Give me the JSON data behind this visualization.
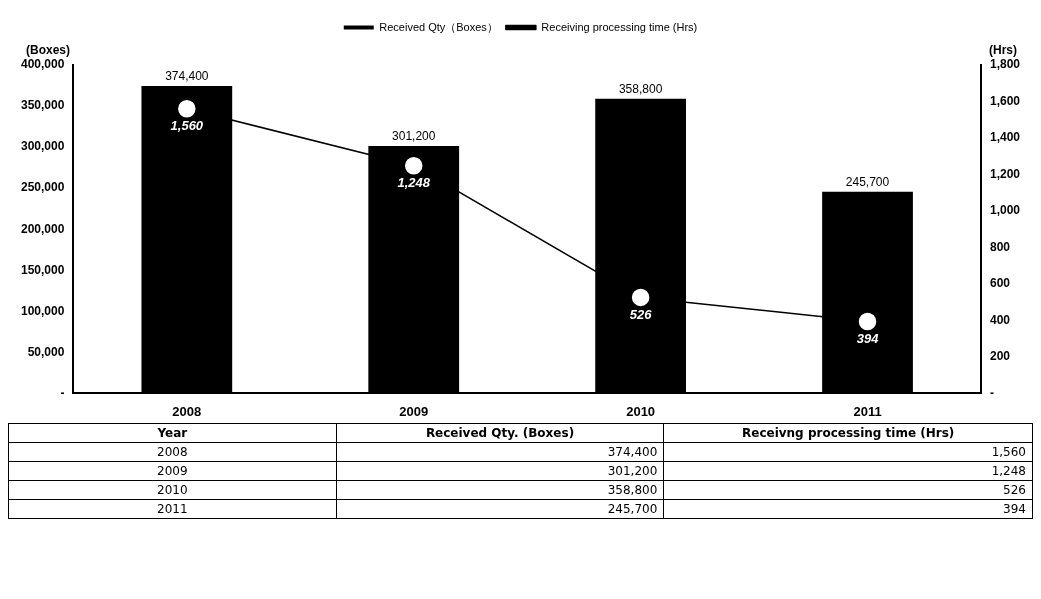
{
  "chart_data": {
    "type": "bar",
    "categories": [
      "2008",
      "2009",
      "2010",
      "2011"
    ],
    "series": [
      {
        "name": "Received Qty（Boxes）",
        "color": "#000000",
        "values": [
          374400,
          301200,
          358800,
          245700
        ],
        "value_labels": [
          "374,400",
          "301,200",
          "358,800",
          "245,700"
        ]
      },
      {
        "name": "Receiving processing time (Hrs)",
        "type": "line",
        "axis": "y2",
        "color": "#000000",
        "values": [
          1560,
          1248,
          526,
          394
        ],
        "value_labels": [
          "1,560",
          "1,248",
          "526",
          "394"
        ]
      }
    ],
    "ylabel": "(Boxes)",
    "y2label": "(Hrs)",
    "ylim": [
      0,
      400000
    ],
    "yticks": [
      {
        "value": 0,
        "label": "-"
      },
      {
        "value": 50000,
        "label": "50,000"
      },
      {
        "value": 100000,
        "label": "100,000"
      },
      {
        "value": 150000,
        "label": "150,000"
      },
      {
        "value": 200000,
        "label": "200,000"
      },
      {
        "value": 250000,
        "label": "250,000"
      },
      {
        "value": 300000,
        "label": "300,000"
      },
      {
        "value": 350000,
        "label": "350,000"
      },
      {
        "value": 400000,
        "label": "400,000"
      }
    ],
    "y2lim": [
      0,
      1800
    ],
    "y2ticks": [
      {
        "value": 0,
        "label": "-"
      },
      200,
      400,
      600,
      800,
      {
        "value": 1000,
        "label": "1,000"
      },
      {
        "value": 1200,
        "label": "1,200"
      },
      {
        "value": 1400,
        "label": "1,400"
      },
      {
        "value": 1600,
        "label": "1,600"
      },
      {
        "value": 1800,
        "label": "1,800"
      }
    ],
    "annotations": [
      "Year",
      "Received Qty. (Boxes)",
      "Receivng processing time (Hrs)"
    ],
    "legend": "top",
    "grid": false,
    "marker": "circle",
    "line_style": "solid"
  }
}
